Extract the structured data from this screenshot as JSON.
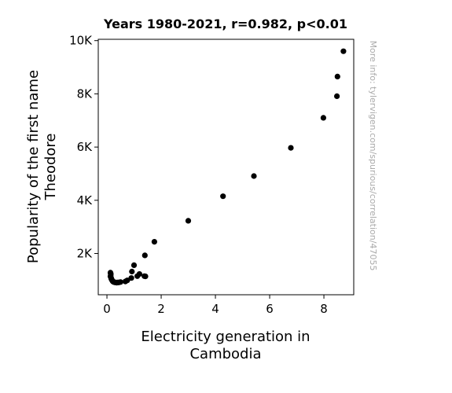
{
  "chart_data": {
    "type": "scatter",
    "title": "Years 1980-2021, r=0.982, p<0.01",
    "xlabel_lines": [
      "Electricity generation in",
      "Cambodia"
    ],
    "ylabel_lines": [
      "Popularity of the first name",
      "Theodore"
    ],
    "watermark": "More info: tylervigen.com/spurious/correlation/47055",
    "xlim": [
      -0.32,
      9.1
    ],
    "ylim": [
      450,
      10050
    ],
    "xticks": [
      {
        "value": 0,
        "label": "0"
      },
      {
        "value": 2,
        "label": "2"
      },
      {
        "value": 4,
        "label": "4"
      },
      {
        "value": 6,
        "label": "6"
      },
      {
        "value": 8,
        "label": "8"
      }
    ],
    "yticks": [
      {
        "value": 2000,
        "label": "2K"
      },
      {
        "value": 4000,
        "label": "4K"
      },
      {
        "value": 6000,
        "label": "6K"
      },
      {
        "value": 8000,
        "label": "8K"
      },
      {
        "value": 10000,
        "label": "10K"
      }
    ],
    "grid": false,
    "marker_color": "#000000",
    "points": [
      {
        "x": 0.13,
        "y": 1280
      },
      {
        "x": 0.14,
        "y": 1240
      },
      {
        "x": 0.14,
        "y": 1190
      },
      {
        "x": 0.13,
        "y": 1140
      },
      {
        "x": 0.15,
        "y": 1090
      },
      {
        "x": 0.16,
        "y": 1050
      },
      {
        "x": 0.18,
        "y": 1010
      },
      {
        "x": 0.2,
        "y": 980
      },
      {
        "x": 0.22,
        "y": 950
      },
      {
        "x": 0.25,
        "y": 930
      },
      {
        "x": 0.28,
        "y": 920
      },
      {
        "x": 0.32,
        "y": 910
      },
      {
        "x": 0.36,
        "y": 905
      },
      {
        "x": 0.4,
        "y": 910
      },
      {
        "x": 0.44,
        "y": 915
      },
      {
        "x": 0.5,
        "y": 930
      },
      {
        "x": 0.68,
        "y": 950
      },
      {
        "x": 0.75,
        "y": 990
      },
      {
        "x": 0.9,
        "y": 1080
      },
      {
        "x": 0.92,
        "y": 1320
      },
      {
        "x": 1.0,
        "y": 1560
      },
      {
        "x": 1.12,
        "y": 1150
      },
      {
        "x": 1.2,
        "y": 1230
      },
      {
        "x": 1.38,
        "y": 1150
      },
      {
        "x": 1.42,
        "y": 1140
      },
      {
        "x": 1.4,
        "y": 1930
      },
      {
        "x": 1.75,
        "y": 2440
      },
      {
        "x": 3.0,
        "y": 3230
      },
      {
        "x": 4.28,
        "y": 4150
      },
      {
        "x": 5.42,
        "y": 4910
      },
      {
        "x": 6.78,
        "y": 5970
      },
      {
        "x": 7.98,
        "y": 7100
      },
      {
        "x": 8.48,
        "y": 7910
      },
      {
        "x": 8.5,
        "y": 8650
      },
      {
        "x": 8.72,
        "y": 9600
      }
    ]
  }
}
